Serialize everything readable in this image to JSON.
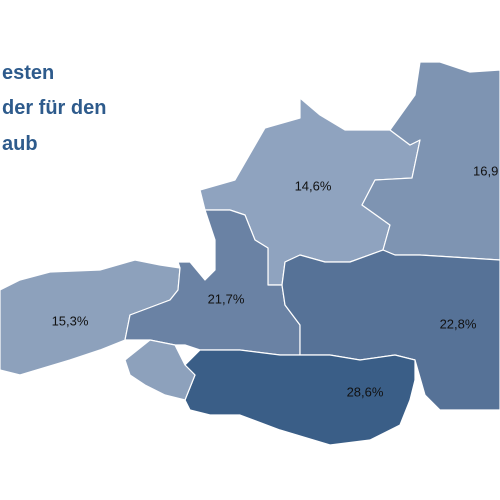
{
  "title_lines": [
    "esten",
    "der für den",
    "aub"
  ],
  "regions": [
    {
      "label": "14,6%",
      "color": "#8fa3bf"
    },
    {
      "label": "16,9",
      "color": "#7e94b2"
    },
    {
      "label": "15,3%",
      "color": "#8da1bc"
    },
    {
      "label": "21,7%",
      "color": "#6a82a4"
    },
    {
      "label": "22,8%",
      "color": "#567297"
    },
    {
      "label": "28,6%",
      "color": "#3a5e87"
    }
  ],
  "east_tyrol_color": "#8da1bc"
}
